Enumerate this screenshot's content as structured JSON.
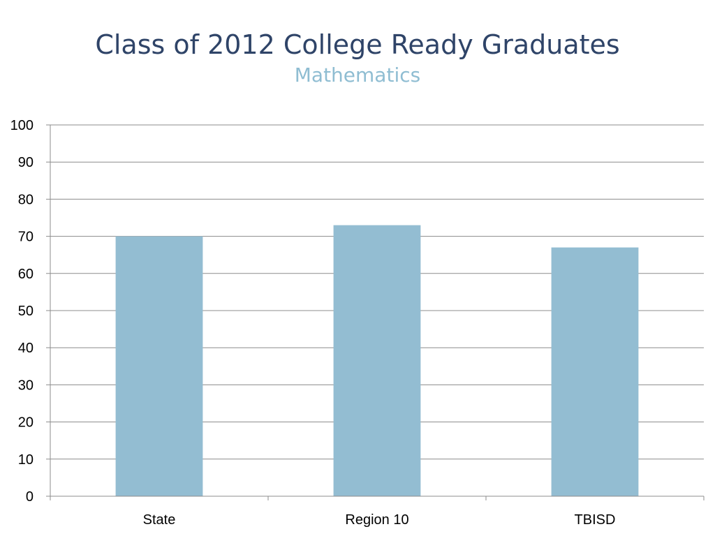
{
  "slide": {
    "title": "Class of 2012 College Ready Graduates",
    "subtitle": "Mathematics"
  },
  "chart_data": {
    "type": "bar",
    "title": "Class of 2012 College Ready Graduates",
    "subtitle": "Mathematics",
    "categories": [
      "State",
      "Region 10",
      "TBISD"
    ],
    "values": [
      70,
      73,
      67
    ],
    "xlabel": "",
    "ylabel": "",
    "ylim": [
      0,
      100
    ],
    "yticks": [
      0,
      10,
      20,
      30,
      40,
      50,
      60,
      70,
      80,
      90,
      100
    ],
    "grid": true,
    "legend": "none",
    "colors": {
      "bar": "#93bdd2",
      "grid": "#8c8c8c",
      "axis": "#8c8c8c"
    }
  }
}
